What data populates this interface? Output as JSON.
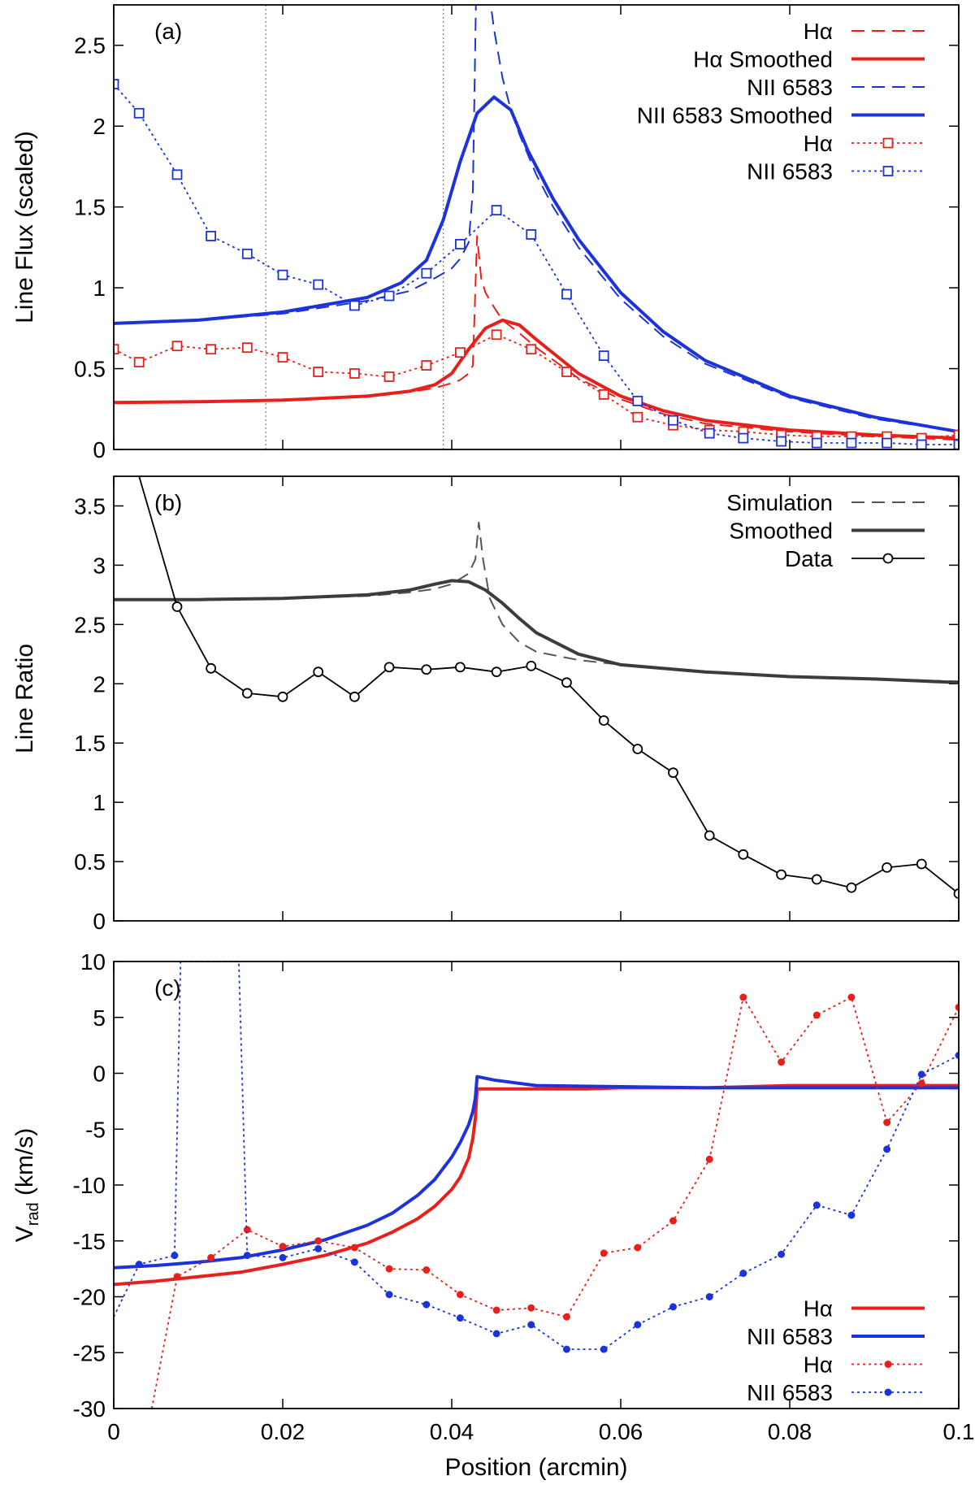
{
  "chart_data": [
    {
      "type": "line",
      "panel_label": "(a)",
      "xlabel": "",
      "ylabel": "Line Flux (scaled)",
      "xlim": [
        0,
        0.1
      ],
      "ylim": [
        0,
        2.75
      ],
      "x_ticks": [
        0,
        0.02,
        0.04,
        0.06,
        0.08,
        0.1
      ],
      "y_ticks": [
        0,
        0.5,
        1,
        1.5,
        2,
        2.5
      ],
      "y_tick_labels": [
        "0",
        "0.5",
        "1",
        "1.5",
        "2",
        "2.5"
      ],
      "x_tick_labels_visible": false,
      "vertical_lines": [
        0.018,
        0.039
      ],
      "legend_position": "top-right",
      "series": [
        {
          "name": "Hα",
          "style": "dashed",
          "color": "#e8201c",
          "x": [
            0,
            0.01,
            0.02,
            0.03,
            0.035,
            0.038,
            0.04,
            0.041,
            0.042,
            0.0425,
            0.043,
            0.0435,
            0.044,
            0.045,
            0.046,
            0.048,
            0.05,
            0.055,
            0.06,
            0.065,
            0.07,
            0.08,
            0.09,
            0.1
          ],
          "y": [
            0.29,
            0.295,
            0.305,
            0.33,
            0.355,
            0.38,
            0.41,
            0.43,
            0.47,
            0.52,
            1.32,
            1.05,
            0.97,
            0.88,
            0.8,
            0.72,
            0.63,
            0.44,
            0.31,
            0.22,
            0.16,
            0.11,
            0.08,
            0.06
          ]
        },
        {
          "name": "Hα Smoothed",
          "style": "solid-thick",
          "color": "#e8201c",
          "x": [
            0,
            0.01,
            0.02,
            0.03,
            0.035,
            0.038,
            0.04,
            0.042,
            0.044,
            0.046,
            0.048,
            0.05,
            0.055,
            0.06,
            0.065,
            0.07,
            0.08,
            0.09,
            0.1
          ],
          "y": [
            0.29,
            0.295,
            0.305,
            0.33,
            0.36,
            0.4,
            0.47,
            0.62,
            0.75,
            0.8,
            0.77,
            0.68,
            0.47,
            0.33,
            0.24,
            0.18,
            0.12,
            0.09,
            0.07
          ]
        },
        {
          "name": "NII 6583",
          "style": "dashed",
          "color": "#1c33d9",
          "x": [
            0,
            0.01,
            0.02,
            0.03,
            0.035,
            0.038,
            0.04,
            0.041,
            0.042,
            0.0425,
            0.043,
            0.0435,
            0.044,
            0.045,
            0.046,
            0.047,
            0.048,
            0.05,
            0.052,
            0.055,
            0.06,
            0.065,
            0.07,
            0.08,
            0.09,
            0.1
          ],
          "y": [
            0.78,
            0.8,
            0.84,
            0.92,
            0.98,
            1.06,
            1.12,
            1.18,
            1.28,
            1.6,
            3.2,
            3.2,
            3.0,
            2.6,
            2.3,
            2.1,
            1.95,
            1.7,
            1.5,
            1.25,
            0.93,
            0.7,
            0.53,
            0.32,
            0.19,
            0.11
          ]
        },
        {
          "name": "NII 6583 Smoothed",
          "style": "solid-thick",
          "color": "#1c33d9",
          "x": [
            0,
            0.01,
            0.02,
            0.03,
            0.034,
            0.037,
            0.039,
            0.041,
            0.043,
            0.045,
            0.047,
            0.049,
            0.052,
            0.055,
            0.06,
            0.065,
            0.07,
            0.08,
            0.09,
            0.1
          ],
          "y": [
            0.78,
            0.8,
            0.85,
            0.94,
            1.03,
            1.17,
            1.42,
            1.78,
            2.08,
            2.18,
            2.1,
            1.85,
            1.55,
            1.3,
            0.97,
            0.73,
            0.55,
            0.33,
            0.2,
            0.11
          ]
        },
        {
          "name": "Hα",
          "style": "dotted-squares",
          "color": "#e8201c",
          "x": [
            0,
            0.003,
            0.0075,
            0.0115,
            0.0158,
            0.02,
            0.0242,
            0.0285,
            0.0326,
            0.037,
            0.041,
            0.0453,
            0.0494,
            0.0536,
            0.058,
            0.062,
            0.0662,
            0.0705,
            0.0745,
            0.079,
            0.0832,
            0.0873,
            0.0915,
            0.0956,
            0.1
          ],
          "y": [
            0.62,
            0.54,
            0.64,
            0.62,
            0.63,
            0.57,
            0.48,
            0.47,
            0.45,
            0.52,
            0.6,
            0.71,
            0.62,
            0.48,
            0.34,
            0.2,
            0.15,
            0.12,
            0.11,
            0.09,
            0.08,
            0.08,
            0.08,
            0.07,
            0.09
          ]
        },
        {
          "name": "NII 6583",
          "style": "dotted-squares",
          "color": "#1c33d9",
          "x": [
            0,
            0.003,
            0.0075,
            0.0115,
            0.0158,
            0.02,
            0.0242,
            0.0285,
            0.0326,
            0.037,
            0.041,
            0.0453,
            0.0494,
            0.0536,
            0.058,
            0.062,
            0.0662,
            0.0705,
            0.0745,
            0.079,
            0.0832,
            0.0873,
            0.0915,
            0.0956,
            0.1
          ],
          "y": [
            2.26,
            2.08,
            1.7,
            1.32,
            1.21,
            1.08,
            1.02,
            0.89,
            0.95,
            1.09,
            1.27,
            1.48,
            1.33,
            0.96,
            0.58,
            0.3,
            0.18,
            0.1,
            0.07,
            0.05,
            0.04,
            0.04,
            0.04,
            0.03,
            0.03
          ]
        }
      ]
    },
    {
      "type": "line",
      "panel_label": "(b)",
      "xlabel": "",
      "ylabel": "Line Ratio",
      "xlim": [
        0,
        0.1
      ],
      "ylim": [
        0,
        3.75
      ],
      "x_ticks": [
        0,
        0.02,
        0.04,
        0.06,
        0.08,
        0.1
      ],
      "y_ticks": [
        0,
        0.5,
        1,
        1.5,
        2,
        2.5,
        3,
        3.5
      ],
      "y_tick_labels": [
        "0",
        "0.5",
        "1",
        "1.5",
        "2",
        "2.5",
        "3",
        "3.5"
      ],
      "x_tick_labels_visible": false,
      "legend_position": "top-right",
      "series": [
        {
          "name": "Simulation",
          "style": "dashed",
          "color": "#555555",
          "x": [
            0,
            0.01,
            0.02,
            0.03,
            0.035,
            0.038,
            0.04,
            0.042,
            0.0428,
            0.0432,
            0.0437,
            0.0445,
            0.046,
            0.048,
            0.05,
            0.055,
            0.06,
            0.07,
            0.08,
            0.09,
            0.1
          ],
          "y": [
            2.71,
            2.71,
            2.72,
            2.74,
            2.77,
            2.8,
            2.84,
            2.93,
            3.05,
            3.36,
            3.05,
            2.72,
            2.5,
            2.35,
            2.27,
            2.2,
            2.16,
            2.1,
            2.06,
            2.04,
            2.02
          ]
        },
        {
          "name": "Smoothed",
          "style": "solid-thick",
          "color": "#3c3c3c",
          "x": [
            0,
            0.01,
            0.02,
            0.03,
            0.035,
            0.038,
            0.04,
            0.042,
            0.044,
            0.046,
            0.048,
            0.05,
            0.055,
            0.06,
            0.07,
            0.08,
            0.09,
            0.1
          ],
          "y": [
            2.71,
            2.71,
            2.72,
            2.75,
            2.79,
            2.84,
            2.87,
            2.86,
            2.79,
            2.68,
            2.55,
            2.43,
            2.25,
            2.16,
            2.1,
            2.06,
            2.04,
            2.01
          ]
        },
        {
          "name": "Data",
          "style": "solid-circles",
          "color": "#000000",
          "x": [
            0.003,
            0.0075,
            0.0115,
            0.0158,
            0.02,
            0.0242,
            0.0285,
            0.0326,
            0.037,
            0.041,
            0.0453,
            0.0494,
            0.0536,
            0.058,
            0.062,
            0.0662,
            0.0705,
            0.0745,
            0.079,
            0.0832,
            0.0873,
            0.0915,
            0.0956,
            0.1
          ],
          "y": [
            3.75,
            2.65,
            2.13,
            1.92,
            1.89,
            2.1,
            1.89,
            2.14,
            2.12,
            2.14,
            2.1,
            2.15,
            2.01,
            1.69,
            1.45,
            1.25,
            0.72,
            0.56,
            0.39,
            0.35,
            0.28,
            0.45,
            0.48,
            0.23
          ],
          "marker_from_index": 1
        }
      ]
    },
    {
      "type": "line",
      "panel_label": "(c)",
      "xlabel": "Position (arcmin)",
      "ylabel": "V",
      "ylabel_subscript": "rad",
      "ylabel_unit": " (km/s)",
      "xlim": [
        0,
        0.1
      ],
      "ylim": [
        -30,
        10
      ],
      "x_ticks": [
        0,
        0.02,
        0.04,
        0.06,
        0.08,
        0.1
      ],
      "x_tick_labels": [
        "0",
        "0.02",
        "0.04",
        "0.06",
        "0.08",
        "0.1"
      ],
      "y_ticks": [
        -30,
        -25,
        -20,
        -15,
        -10,
        -5,
        0,
        5,
        10
      ],
      "y_tick_labels": [
        "-30",
        "-25",
        "-20",
        "-15",
        "-10",
        "-5",
        "0",
        "5",
        "10"
      ],
      "legend_position": "bottom-right",
      "series": [
        {
          "name": "Hα",
          "style": "solid-thick",
          "color": "#e8201c",
          "x": [
            0,
            0.005,
            0.01,
            0.015,
            0.02,
            0.025,
            0.03,
            0.033,
            0.036,
            0.038,
            0.04,
            0.041,
            0.042,
            0.0425,
            0.0428,
            0.043,
            0.045,
            0.05,
            0.056,
            0.06,
            0.07,
            0.08,
            0.09,
            0.1
          ],
          "y": [
            -18.9,
            -18.6,
            -18.2,
            -17.8,
            -17.1,
            -16.3,
            -15.2,
            -14.2,
            -13.0,
            -11.9,
            -10.4,
            -9.3,
            -7.6,
            -5.8,
            -4.0,
            -1.4,
            -1.4,
            -1.4,
            -1.4,
            -1.3,
            -1.3,
            -1.1,
            -1.1,
            -1.1
          ]
        },
        {
          "name": "NII 6583",
          "style": "solid-thick",
          "color": "#1c33d9",
          "x": [
            0,
            0.005,
            0.01,
            0.015,
            0.02,
            0.025,
            0.03,
            0.033,
            0.036,
            0.038,
            0.04,
            0.041,
            0.042,
            0.0425,
            0.0428,
            0.043,
            0.045,
            0.05,
            0.06,
            0.07,
            0.08,
            0.09,
            0.1
          ],
          "y": [
            -17.4,
            -17.2,
            -16.9,
            -16.5,
            -15.8,
            -14.9,
            -13.6,
            -12.5,
            -10.9,
            -9.5,
            -7.5,
            -6.2,
            -4.6,
            -3.4,
            -2.2,
            -0.3,
            -0.6,
            -1.1,
            -1.2,
            -1.3,
            -1.3,
            -1.3,
            -1.3
          ]
        },
        {
          "name": "Hα",
          "style": "dotted-dots",
          "color": "#e8201c",
          "x": [
            0.0045,
            0.0075,
            0.0115,
            0.0158,
            0.02,
            0.0242,
            0.0285,
            0.0326,
            0.037,
            0.041,
            0.0453,
            0.0494,
            0.0536,
            0.058,
            0.062,
            0.0662,
            0.0705,
            0.0745,
            0.079,
            0.0832,
            0.0873,
            0.0915,
            0.0956,
            0.1
          ],
          "y": [
            -30.0,
            -18.2,
            -16.5,
            -14.0,
            -15.5,
            -15.0,
            -15.6,
            -17.5,
            -17.6,
            -19.8,
            -21.2,
            -21.0,
            -21.8,
            -16.1,
            -15.6,
            -13.2,
            -7.7,
            6.8,
            1.0,
            5.2,
            6.8,
            -4.4,
            -0.9,
            5.9
          ],
          "marker_from_index": 1
        },
        {
          "name": "NII 6583",
          "style": "dotted-dots",
          "color": "#1c33d9",
          "x": [
            0,
            0.003,
            0.0072,
            0.0079,
            0.0148,
            0.0158,
            0.02,
            0.0242,
            0.0285,
            0.0326,
            0.037,
            0.041,
            0.0453,
            0.0494,
            0.0536,
            0.058,
            0.062,
            0.0662,
            0.0705,
            0.0745,
            0.079,
            0.0832,
            0.0873,
            0.0915,
            0.0956,
            0.1
          ],
          "y": [
            -21.8,
            -17.1,
            -16.3,
            10,
            10,
            -16.3,
            -16.5,
            -15.7,
            -16.9,
            -19.8,
            -20.7,
            -21.9,
            -23.3,
            -22.5,
            -24.7,
            -24.7,
            -22.5,
            -20.9,
            -20.0,
            -17.9,
            -16.2,
            -11.8,
            -12.7,
            -6.8,
            -0.1,
            1.6
          ],
          "marker_indices": [
            1,
            2,
            5,
            6,
            7,
            8,
            9,
            10,
            11,
            12,
            13,
            14,
            15,
            16,
            17,
            18,
            19,
            20,
            21,
            22,
            23,
            24,
            25
          ]
        }
      ]
    }
  ]
}
